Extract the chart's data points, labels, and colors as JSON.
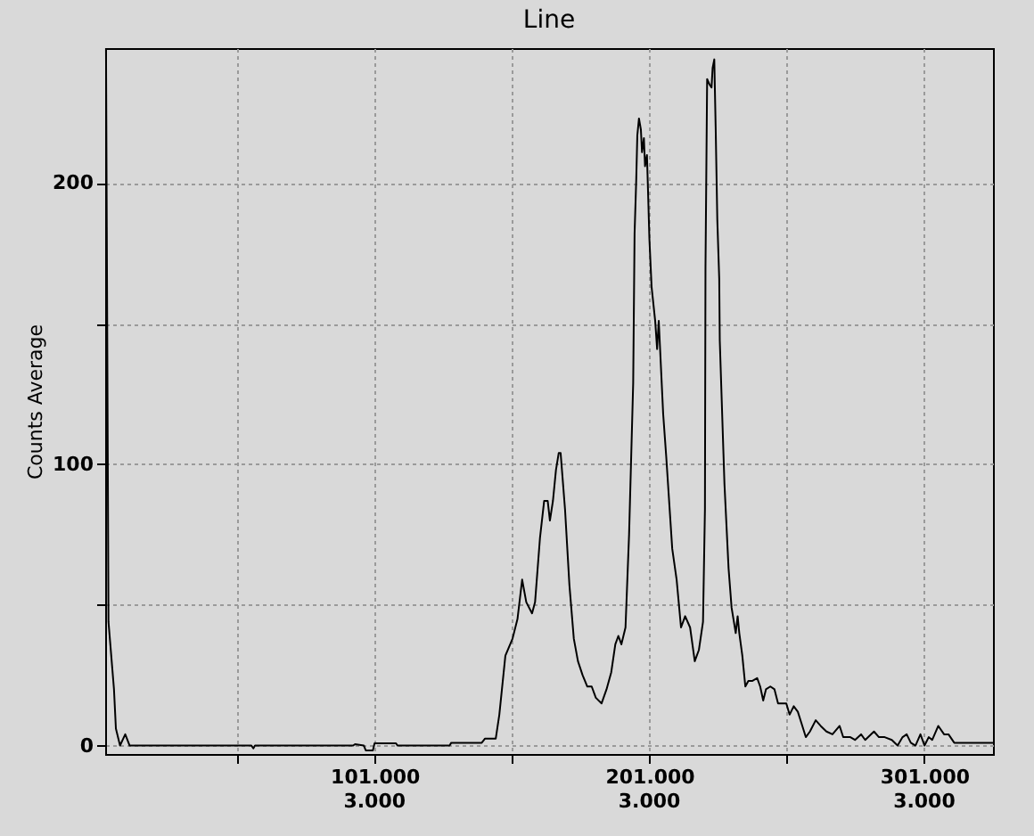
{
  "chart_data": {
    "type": "line",
    "title": "Line",
    "ylabel": "Counts Average",
    "xlim": [
      3000,
      326000
    ],
    "ylim": [
      -3,
      248
    ],
    "xticks": [
      {
        "value": 51000,
        "label": null
      },
      {
        "value": 101000,
        "label": "101.000"
      },
      {
        "value": 151000,
        "label": null
      },
      {
        "value": 201000,
        "label": "201.000"
      },
      {
        "value": 251000,
        "label": null
      },
      {
        "value": 301000,
        "label": "301.000"
      }
    ],
    "yticks": [
      0,
      {
        "value": 50,
        "label": null
      },
      100,
      {
        "value": 150,
        "label": null
      },
      200
    ],
    "annotations": [
      "3.000",
      "3.000",
      "3.000"
    ],
    "grid": true,
    "line_style": "solid",
    "marker": "none",
    "series": [
      {
        "color": "#000000",
        "x": [
          3300,
          4200,
          6200,
          6900,
          8400,
          10300,
          11900,
          56200,
          56900,
          57500,
          93200,
          93900,
          97100,
          97800,
          100400,
          101000,
          108800,
          109400,
          128300,
          128900,
          140000,
          141200,
          145100,
          146400,
          148600,
          151200,
          153000,
          154700,
          156200,
          158300,
          159400,
          161200,
          162700,
          164000,
          164800,
          165900,
          167000,
          168000,
          168700,
          170300,
          171900,
          173500,
          175000,
          176700,
          178400,
          180000,
          181500,
          183600,
          185400,
          187100,
          188600,
          189700,
          190800,
          192300,
          193600,
          195100,
          195600,
          196200,
          196600,
          197200,
          197900,
          198300,
          199000,
          199400,
          200100,
          200500,
          201000,
          201800,
          203100,
          203800,
          204400,
          206000,
          207100,
          209300,
          210900,
          212500,
          214000,
          215800,
          217500,
          219000,
          220500,
          221200,
          221400,
          222000,
          222900,
          223600,
          224000,
          224600,
          225100,
          225700,
          226400,
          226600,
          228300,
          229800,
          230900,
          232400,
          233100,
          233700,
          234800,
          235900,
          237000,
          238500,
          240200,
          241300,
          242400,
          243400,
          245000,
          246500,
          247800,
          249200,
          250800,
          252000,
          253500,
          255000,
          256300,
          257900,
          259400,
          261500,
          263300,
          265400,
          267600,
          270200,
          271500,
          274100,
          275800,
          278000,
          279500,
          282700,
          284500,
          286600,
          289200,
          291300,
          293100,
          294600,
          296100,
          297800,
          299600,
          301100,
          302600,
          303900,
          306100,
          308200,
          309800,
          311900,
          326000
        ],
        "values": [
          248,
          44,
          20,
          6,
          0,
          4,
          0,
          0,
          -1,
          0,
          0,
          0.5,
          0,
          -1.7,
          -1.7,
          0.8,
          0.8,
          0,
          0,
          1,
          1,
          2.5,
          2.5,
          11,
          32,
          38,
          45,
          59,
          51,
          47,
          51,
          74,
          87,
          87,
          80,
          87,
          98,
          104,
          104,
          84,
          57,
          38,
          30,
          25,
          21,
          21,
          17,
          15,
          20,
          26,
          36,
          39,
          36,
          42,
          75,
          129,
          182,
          201,
          217,
          223,
          219,
          211,
          216,
          206,
          210,
          197,
          180,
          163,
          151,
          141,
          151,
          118,
          103,
          70,
          59,
          42,
          46,
          42,
          30,
          34,
          44,
          84,
          170,
          237,
          235,
          234,
          241,
          244,
          220,
          187,
          166,
          144,
          93,
          63,
          49,
          40,
          46,
          40,
          32,
          21,
          23,
          23,
          24,
          21,
          16,
          20,
          21,
          20,
          15,
          15,
          15,
          11,
          14,
          12,
          8,
          3,
          5,
          9,
          7,
          5,
          4,
          7,
          3,
          3,
          2,
          4,
          2,
          5,
          3,
          3,
          2,
          0,
          3,
          4,
          1,
          0,
          4,
          0,
          3,
          2,
          7,
          4,
          4,
          1,
          1
        ]
      }
    ]
  }
}
